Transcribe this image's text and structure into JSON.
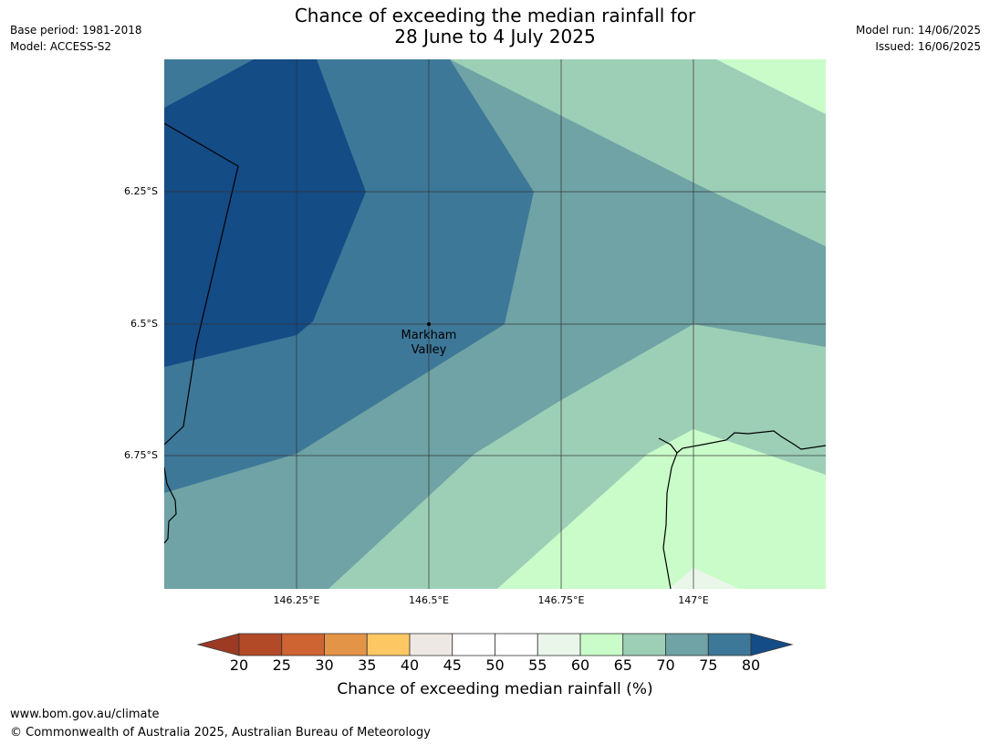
{
  "header": {
    "base_period": "Base period: 1981-2018",
    "model": "Model: ACCESS-S2",
    "model_run": "Model run: 14/06/2025",
    "issued": "Issued: 16/06/2025",
    "title_line1": "Chance of exceeding the median rainfall for",
    "title_line2": "28 June to 4 July 2025"
  },
  "map": {
    "lat_ticks": [
      "6.25°S",
      "6.5°S",
      "6.75°S"
    ],
    "lon_ticks": [
      "146.25°E",
      "146.5°E",
      "146.75°E",
      "147°E"
    ],
    "place": {
      "name_line1": "Markham",
      "name_line2": "Valley"
    }
  },
  "colorbar": {
    "title": "Chance of exceeding median rainfall (%)",
    "labels": [
      "20",
      "25",
      "30",
      "35",
      "40",
      "45",
      "50",
      "55",
      "60",
      "65",
      "70",
      "75",
      "80"
    ],
    "colors": {
      "under": "#9c3a24",
      "bins": [
        "#b24a27",
        "#cd6432",
        "#e39446",
        "#fdc864",
        "#ede8e4",
        "#ffffff",
        "#ffffff",
        "#eaf6ea",
        "#c9fcc9",
        "#9dcfb7",
        "#6fa3a5",
        "#3e7898"
      ],
      "over": "#144c86"
    }
  },
  "footer": {
    "url": "www.bom.gov.au/climate",
    "copyright": "© Commonwealth of Australia 2025, Australian Bureau of Meteorology"
  }
}
